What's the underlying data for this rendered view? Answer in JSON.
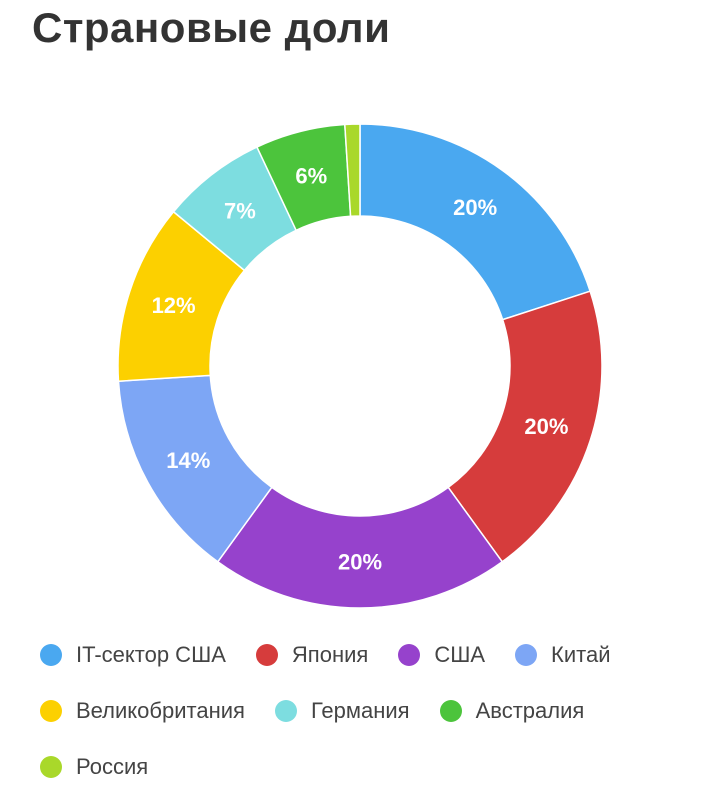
{
  "chart_data": {
    "type": "pie",
    "donut": true,
    "title": "Страновые доли",
    "legend_position": "bottom",
    "slices": [
      {
        "name": "IT-сектор США",
        "value": 20,
        "label": "20%",
        "color": "#4aa8f0"
      },
      {
        "name": "Япония",
        "value": 20,
        "label": "20%",
        "color": "#d63c3c"
      },
      {
        "name": "США",
        "value": 20,
        "label": "20%",
        "color": "#9642cc"
      },
      {
        "name": "Китай",
        "value": 14,
        "label": "14%",
        "color": "#7da6f5"
      },
      {
        "name": "Великобритания",
        "value": 12,
        "label": "12%",
        "color": "#fcd000"
      },
      {
        "name": "Германия",
        "value": 7,
        "label": "7%",
        "color": "#7ddde0"
      },
      {
        "name": "Австралия",
        "value": 6,
        "label": "6%",
        "color": "#4cc43c"
      },
      {
        "name": "Россия",
        "value": 1,
        "label": "",
        "color": "#a9d82a"
      }
    ]
  }
}
